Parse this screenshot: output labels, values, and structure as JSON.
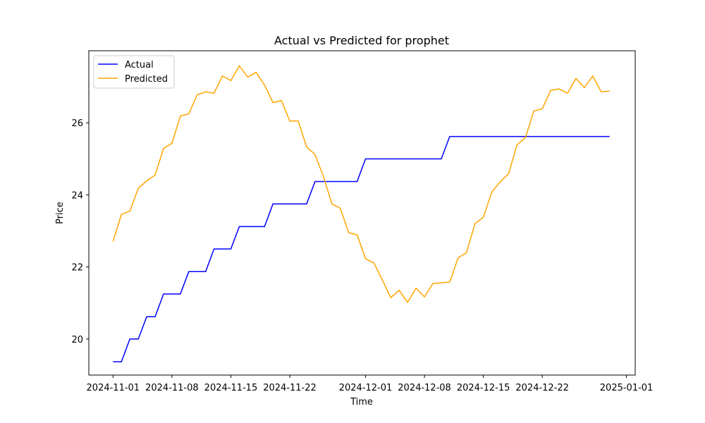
{
  "chart_data": {
    "type": "line",
    "title": "Actual vs Predicted for prophet",
    "xlabel": "Time",
    "ylabel": "Price",
    "x": [
      "2024-11-01",
      "2024-11-02",
      "2024-11-03",
      "2024-11-04",
      "2024-11-05",
      "2024-11-06",
      "2024-11-07",
      "2024-11-08",
      "2024-11-09",
      "2024-11-10",
      "2024-11-11",
      "2024-11-12",
      "2024-11-13",
      "2024-11-14",
      "2024-11-15",
      "2024-11-16",
      "2024-11-17",
      "2024-11-18",
      "2024-11-19",
      "2024-11-20",
      "2024-11-21",
      "2024-11-22",
      "2024-11-23",
      "2024-11-24",
      "2024-11-25",
      "2024-11-26",
      "2024-11-27",
      "2024-11-28",
      "2024-11-29",
      "2024-11-30",
      "2024-12-01",
      "2024-12-02",
      "2024-12-03",
      "2024-12-04",
      "2024-12-05",
      "2024-12-06",
      "2024-12-07",
      "2024-12-08",
      "2024-12-09",
      "2024-12-10",
      "2024-12-11",
      "2024-12-12",
      "2024-12-13",
      "2024-12-14",
      "2024-12-15",
      "2024-12-16",
      "2024-12-17",
      "2024-12-18",
      "2024-12-19",
      "2024-12-20",
      "2024-12-21",
      "2024-12-22",
      "2024-12-23",
      "2024-12-24",
      "2024-12-25",
      "2024-12-26",
      "2024-12-27",
      "2024-12-28",
      "2024-12-29",
      "2024-12-30"
    ],
    "series": [
      {
        "name": "Actual",
        "color": "#0000ff",
        "values": [
          19.37,
          19.37,
          20.0,
          20.0,
          20.62,
          20.62,
          21.25,
          21.25,
          21.25,
          21.87,
          21.87,
          21.87,
          22.5,
          22.5,
          22.5,
          23.12,
          23.12,
          23.12,
          23.12,
          23.75,
          23.75,
          23.75,
          23.75,
          23.75,
          24.37,
          24.37,
          24.37,
          24.37,
          24.37,
          24.37,
          25.0,
          25.0,
          25.0,
          25.0,
          25.0,
          25.0,
          25.0,
          25.0,
          25.0,
          25.0,
          25.62,
          25.62,
          25.62,
          25.62,
          25.62,
          25.62,
          25.62,
          25.62,
          25.62,
          25.62,
          25.62,
          25.62,
          25.62,
          25.62,
          25.62,
          25.62,
          25.62,
          25.62,
          25.62,
          25.62
        ]
      },
      {
        "name": "Predicted",
        "color": "#ffa500",
        "values": [
          22.71,
          23.46,
          23.55,
          24.18,
          24.39,
          24.55,
          25.29,
          25.43,
          26.19,
          26.25,
          26.78,
          26.86,
          26.82,
          27.3,
          27.17,
          27.58,
          27.27,
          27.4,
          27.05,
          26.56,
          26.62,
          26.05,
          26.05,
          25.33,
          25.12,
          24.51,
          23.75,
          23.63,
          22.95,
          22.89,
          22.23,
          22.11,
          21.64,
          21.15,
          21.35,
          21.02,
          21.41,
          21.17,
          21.54,
          21.56,
          21.58,
          22.25,
          22.4,
          23.2,
          23.38,
          24.08,
          24.36,
          24.59,
          25.39,
          25.59,
          26.33,
          26.39,
          26.9,
          26.94,
          26.82,
          27.23,
          26.98,
          27.3,
          26.86,
          26.88
        ]
      }
    ],
    "xlim": [
      "2024-10-29T03:00",
      "2025-01-02T01:00"
    ],
    "xticks": [
      "2024-11-01",
      "2024-11-08",
      "2024-11-15",
      "2024-11-22",
      "2024-12-01",
      "2024-12-08",
      "2024-12-15",
      "2024-12-22",
      "2025-01-01"
    ],
    "ylim": [
      19.0,
      28.0
    ],
    "yticks": [
      20,
      22,
      24,
      26
    ],
    "legend": "upper left",
    "grid": false
  }
}
